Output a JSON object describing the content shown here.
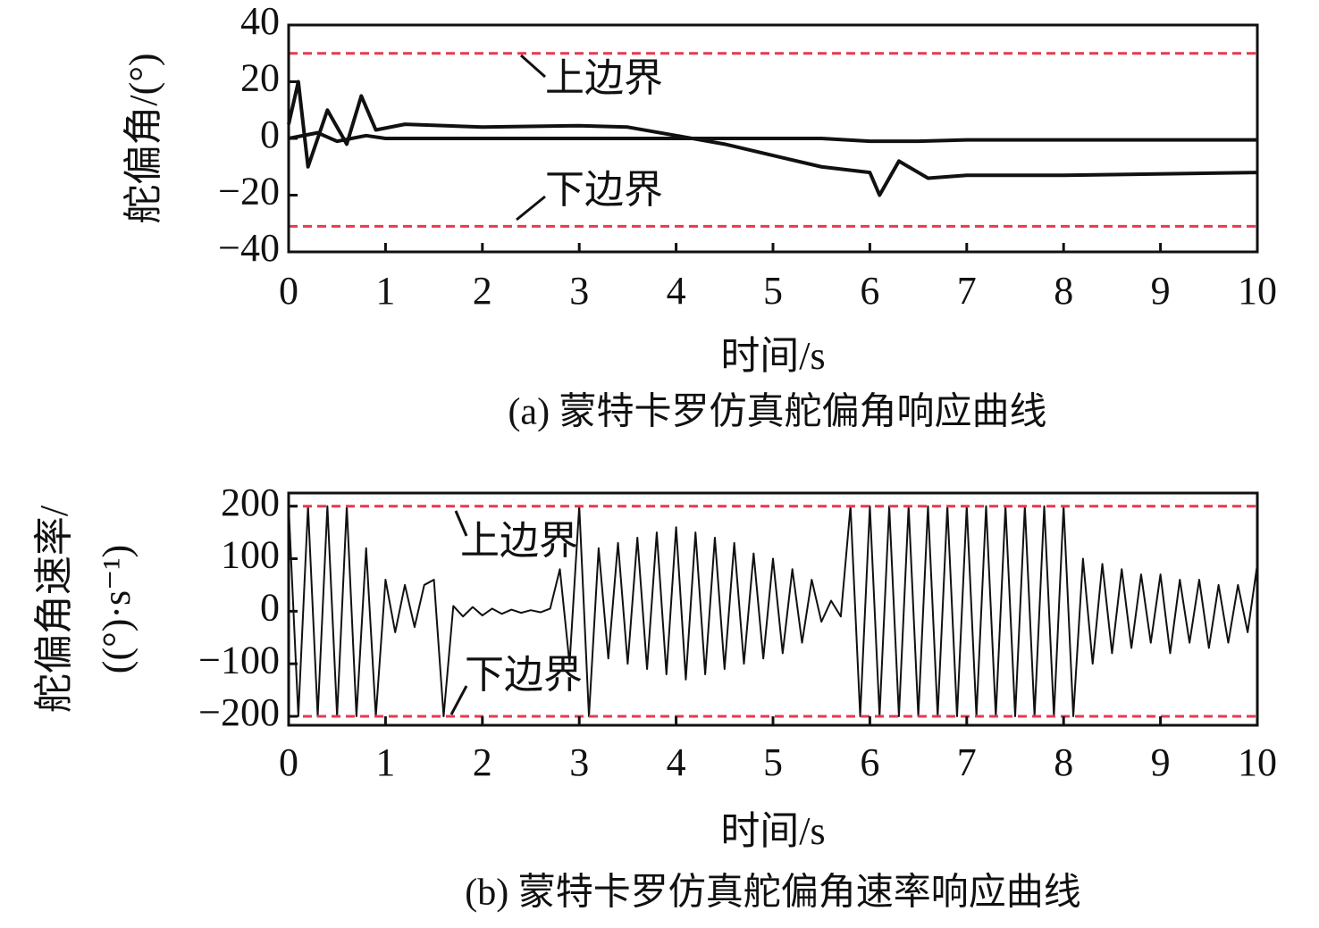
{
  "chart_data": [
    {
      "type": "line",
      "title": "(a) 蒙特卡罗仿真舵偏角响应曲线",
      "x_label": "时间/s",
      "y_label": [
        "舵偏角/(°)"
      ],
      "xlim": [
        0,
        10
      ],
      "xticks": [
        0,
        1,
        2,
        3,
        4,
        5,
        6,
        7,
        8,
        9,
        10
      ],
      "ylim": [
        -40,
        40
      ],
      "yticks": [
        {
          "value": -40,
          "label": "−40"
        },
        {
          "value": -20,
          "label": "−20"
        },
        0,
        20,
        40
      ],
      "grid": false,
      "bound_color": "#e8394f",
      "bounds": [
        {
          "value": 30,
          "label": "上边界"
        },
        {
          "value": -31,
          "label": "下边界"
        }
      ],
      "series": [
        {
          "color": "#111111",
          "x": [
            0,
            0.3,
            0.5,
            0.8,
            1,
            1.5,
            2,
            3,
            4,
            5,
            5.5,
            6,
            6.5,
            7,
            8,
            9,
            10
          ],
          "values": [
            0,
            2,
            -1,
            1,
            0,
            0,
            0,
            0,
            0,
            0,
            0,
            -1,
            -1,
            -0.5,
            -0.5,
            -0.5,
            -0.5
          ]
        },
        {
          "color": "#111111",
          "x": [
            0,
            0.1,
            0.2,
            0.4,
            0.6,
            0.75,
            0.9,
            1.2,
            2,
            3,
            3.5,
            4,
            4.5,
            5,
            5.5,
            6,
            6.1,
            6.3,
            6.6,
            7,
            8,
            10
          ],
          "values": [
            5,
            20,
            -10,
            10,
            -2,
            15,
            3,
            5,
            4,
            4.5,
            4,
            1,
            -2,
            -6,
            -10,
            -12,
            -20,
            -8,
            -14,
            -13,
            -13,
            -12
          ]
        }
      ]
    },
    {
      "type": "line",
      "title": "(b) 蒙特卡罗仿真舵偏角速率响应曲线",
      "x_label": "时间/s",
      "y_label": [
        "舵偏角速率/",
        "((°)·s⁻¹)"
      ],
      "xlim": [
        0,
        10
      ],
      "xticks": [
        0,
        1,
        2,
        3,
        4,
        5,
        6,
        7,
        8,
        9,
        10
      ],
      "ylim": [
        -217,
        225
      ],
      "yticks": [
        {
          "value": -200,
          "label": "−200"
        },
        {
          "value": -100,
          "label": "−100"
        },
        0,
        100,
        200
      ],
      "grid": false,
      "bound_color": "#e8394f",
      "bounds": [
        {
          "value": 200,
          "label": "上边界"
        },
        {
          "value": -200,
          "label": "下边界"
        }
      ],
      "series": [
        {
          "color": "#111111",
          "x": [
            0,
            0.1,
            0.2,
            0.3,
            0.4,
            0.5,
            0.6,
            0.7,
            0.8,
            0.9,
            1,
            1.1,
            1.2,
            1.3,
            1.4,
            1.5,
            1.6,
            1.7,
            1.8,
            1.9,
            2,
            2.1,
            2.2,
            2.3,
            2.4,
            2.5,
            2.6,
            2.7,
            2.8,
            2.9,
            3,
            3.1,
            3.2,
            3.3,
            3.4,
            3.5,
            3.6,
            3.7,
            3.8,
            3.9,
            4,
            4.1,
            4.2,
            4.3,
            4.4,
            4.5,
            4.6,
            4.7,
            4.8,
            4.9,
            5,
            5.1,
            5.2,
            5.3,
            5.4,
            5.5,
            5.6,
            5.7,
            5.8,
            5.9,
            6,
            6.1,
            6.2,
            6.3,
            6.4,
            6.5,
            6.6,
            6.7,
            6.8,
            6.9,
            7,
            7.1,
            7.2,
            7.3,
            7.4,
            7.5,
            7.6,
            7.7,
            7.8,
            7.9,
            8,
            8.1,
            8.2,
            8.3,
            8.4,
            8.5,
            8.6,
            8.7,
            8.8,
            8.9,
            9,
            9.1,
            9.2,
            9.3,
            9.4,
            9.5,
            9.6,
            9.7,
            9.8,
            9.9,
            10
          ],
          "values": [
            200,
            -200,
            200,
            -200,
            200,
            -200,
            200,
            -200,
            120,
            -200,
            60,
            -40,
            50,
            -30,
            50,
            60,
            -200,
            10,
            -10,
            8,
            -8,
            5,
            -5,
            3,
            -3,
            2,
            -2,
            5,
            80,
            -100,
            200,
            -200,
            120,
            -90,
            130,
            -100,
            140,
            -110,
            150,
            -120,
            160,
            -130,
            150,
            -120,
            140,
            -110,
            130,
            -100,
            110,
            -90,
            100,
            -80,
            80,
            -60,
            60,
            -20,
            20,
            -10,
            200,
            -200,
            200,
            -200,
            200,
            -200,
            200,
            -200,
            200,
            -200,
            200,
            -200,
            200,
            -200,
            200,
            -200,
            200,
            -200,
            200,
            -200,
            200,
            -200,
            200,
            -200,
            100,
            -100,
            90,
            -80,
            80,
            -70,
            70,
            -60,
            70,
            -80,
            60,
            -60,
            60,
            -70,
            50,
            -60,
            50,
            -40,
            90
          ]
        }
      ]
    }
  ]
}
